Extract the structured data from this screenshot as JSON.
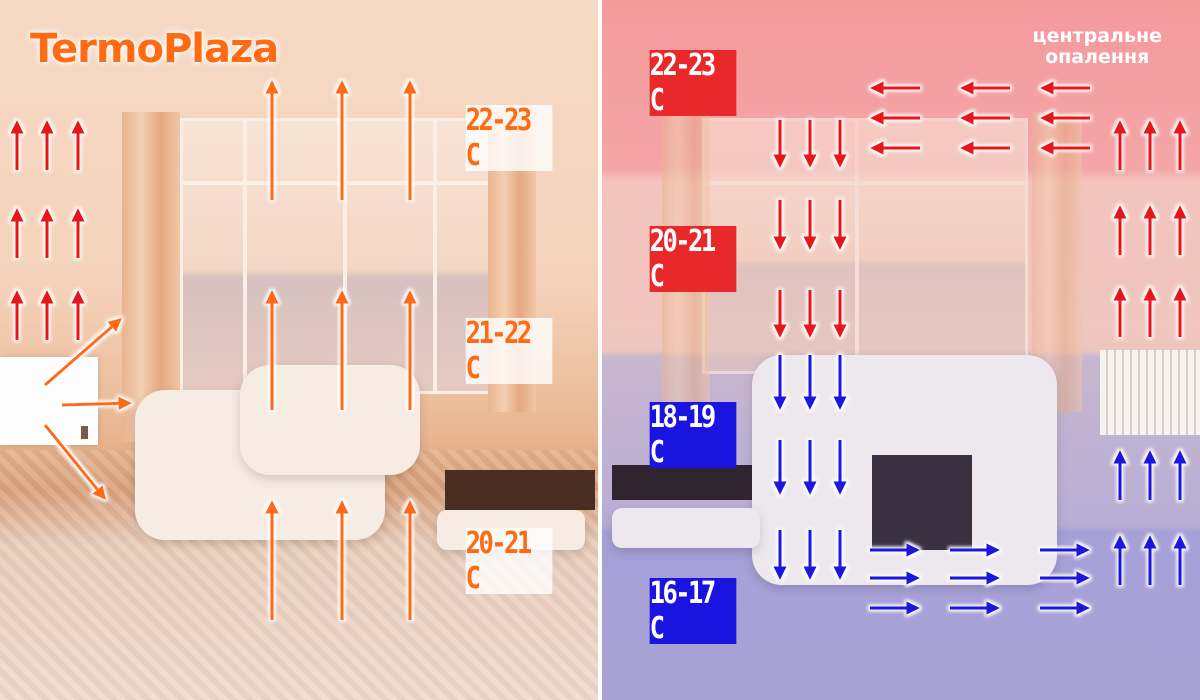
{
  "left_panel": {
    "logo": "TermoPlaza",
    "temperature_zones": [
      "22-23 C",
      "21-22 C",
      "20-21 C"
    ],
    "arrow_color": "#ff6a13",
    "accent_arrow_color": "#e8141a"
  },
  "right_panel": {
    "caption_line1": "центральне",
    "caption_line2": "опалення",
    "temperature_zones": [
      {
        "label": "22-23 C",
        "color": "#e8282a"
      },
      {
        "label": "20-21 C",
        "color": "#e8282a"
      },
      {
        "label": "18-19 C",
        "color": "#1a14e0"
      },
      {
        "label": "16-17 C",
        "color": "#1a14e0"
      }
    ],
    "warm_arrow_color": "#e8141a",
    "cold_arrow_color": "#1a14e0"
  }
}
